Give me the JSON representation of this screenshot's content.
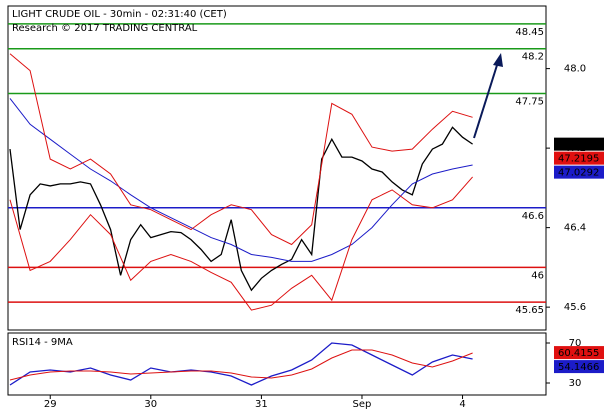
{
  "chart_data": [
    {
      "type": "line",
      "title": "LIGHT CRUDE OIL - 30min - 02:31:40 (CET)",
      "subtitle": "Research © 2017 TRADING CENTRAL",
      "xlim": [
        -0.2,
        53.3
      ],
      "ylim": [
        45.37,
        48.63
      ],
      "yticks": [
        {
          "value": 48,
          "label": "48.0"
        },
        {
          "value": 47.2,
          "label": "47.2"
        },
        {
          "value": 46.4,
          "label": "46.4"
        },
        {
          "value": 45.6,
          "label": "45.6"
        }
      ],
      "series": [
        {
          "color": "#000000",
          "x": [
            0,
            1,
            2,
            3,
            4,
            5,
            6,
            7,
            8,
            9,
            10,
            11,
            12,
            13,
            14,
            15,
            16,
            17,
            18,
            19,
            20,
            21,
            22,
            23,
            24,
            25,
            26,
            27,
            28,
            29,
            30,
            31,
            32,
            33,
            34,
            35,
            36,
            37,
            38,
            39,
            40,
            41,
            42,
            43,
            44,
            45,
            46
          ],
          "values": [
            47.19,
            46.38,
            46.73,
            46.84,
            46.82,
            46.84,
            46.84,
            46.86,
            46.84,
            46.63,
            46.38,
            45.92,
            46.28,
            46.43,
            46.3,
            46.33,
            46.36,
            46.35,
            46.28,
            46.18,
            46.06,
            46.13,
            46.48,
            45.97,
            45.77,
            45.89,
            45.97,
            46.03,
            46.08,
            46.28,
            46.13,
            47.09,
            47.29,
            47.11,
            47.11,
            47.07,
            46.99,
            46.96,
            46.86,
            46.78,
            46.73,
            47.04,
            47.19,
            47.24,
            47.41,
            47.31,
            47.24
          ]
        },
        {
          "color": "#1c1cc8",
          "x": [
            0,
            2,
            4,
            6,
            8,
            10,
            12,
            14,
            16,
            18,
            20,
            22,
            24,
            26,
            28,
            30,
            32,
            34,
            36,
            38,
            40,
            42,
            44,
            46
          ],
          "values": [
            47.7,
            47.44,
            47.29,
            47.14,
            46.99,
            46.87,
            46.73,
            46.6,
            46.5,
            46.4,
            46.3,
            46.23,
            46.13,
            46.1,
            46.06,
            46.06,
            46.13,
            46.23,
            46.4,
            46.63,
            46.84,
            46.94,
            46.99,
            47.03
          ]
        },
        {
          "color": "#dd1111",
          "x": [
            0,
            2,
            4,
            6,
            8,
            10,
            12,
            14,
            16,
            18,
            20,
            22,
            24,
            26,
            28,
            30,
            32,
            34,
            36,
            38,
            40,
            42,
            44,
            46
          ],
          "values": [
            48.15,
            47.98,
            47.09,
            46.99,
            47.09,
            46.94,
            46.63,
            46.58,
            46.48,
            46.38,
            46.53,
            46.63,
            46.58,
            46.33,
            46.23,
            46.43,
            47.65,
            47.54,
            47.21,
            47.17,
            47.19,
            47.39,
            47.57,
            47.51
          ]
        },
        {
          "color": "#dd1111",
          "x": [
            0,
            2,
            4,
            6,
            8,
            10,
            12,
            14,
            16,
            18,
            20,
            22,
            24,
            26,
            28,
            30,
            32,
            34,
            36,
            38,
            40,
            42,
            44,
            46
          ],
          "values": [
            46.68,
            45.97,
            46.06,
            46.28,
            46.53,
            46.33,
            45.87,
            46.06,
            46.13,
            46.06,
            45.95,
            45.85,
            45.57,
            45.62,
            45.79,
            45.92,
            45.67,
            46.28,
            46.68,
            46.78,
            46.63,
            46.6,
            46.68,
            46.91
          ]
        }
      ],
      "levels": [
        {
          "value": 48.45,
          "color": "#1a9a1a"
        },
        {
          "value": 48.2,
          "color": "#1a9a1a"
        },
        {
          "value": 47.75,
          "color": "#1a9a1a"
        },
        {
          "value": 46.6,
          "color": "#1c1cc8"
        },
        {
          "value": 46,
          "color": "#dd1111"
        },
        {
          "value": 45.65,
          "color": "#dd1111"
        }
      ],
      "last_values": [
        {
          "value": 47.24,
          "color": "#000000"
        },
        {
          "value": 47.2195,
          "color": "#e01010"
        },
        {
          "value": 47.0292,
          "color": "#1c1cc8"
        }
      ]
    },
    {
      "type": "line",
      "title": "RSI14 - 9MA",
      "xlim": [
        -0.2,
        53.3
      ],
      "ylim": [
        18,
        80
      ],
      "yticks": [
        30,
        70
      ],
      "xticks": [
        {
          "value": 4,
          "label": "29"
        },
        {
          "value": 14,
          "label": "30"
        },
        {
          "value": 25,
          "label": "31"
        },
        {
          "value": 35,
          "label": "Sep"
        },
        {
          "value": 45,
          "label": "4"
        }
      ],
      "series": [
        {
          "color": "#1c1cc8",
          "x": [
            0,
            2,
            4,
            6,
            8,
            10,
            12,
            14,
            16,
            18,
            20,
            22,
            24,
            26,
            28,
            30,
            32,
            34,
            36,
            38,
            40,
            42,
            44,
            46
          ],
          "values": [
            28,
            41,
            43,
            41,
            45,
            38,
            33,
            45,
            41,
            43,
            41,
            37,
            28,
            37,
            43,
            53,
            70,
            68,
            58,
            48,
            38,
            51,
            58,
            54
          ]
        },
        {
          "color": "#dd1111",
          "x": [
            0,
            2,
            4,
            6,
            8,
            10,
            12,
            14,
            16,
            18,
            20,
            22,
            24,
            26,
            28,
            30,
            32,
            34,
            36,
            38,
            40,
            42,
            44,
            46
          ],
          "values": [
            33,
            38,
            41,
            42,
            42,
            41,
            39,
            40,
            41,
            42,
            42,
            40,
            36,
            35,
            38,
            44,
            55,
            63,
            63,
            58,
            50,
            46,
            52,
            60
          ]
        }
      ],
      "last_values": [
        {
          "value": 60.4155,
          "color": "#e01010"
        },
        {
          "value": 54.1466,
          "color": "#1c1cc8"
        }
      ]
    }
  ]
}
